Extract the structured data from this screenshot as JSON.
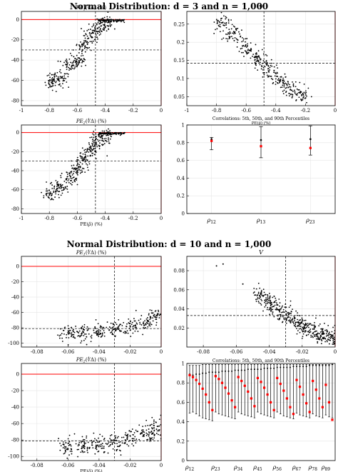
{
  "section_titles": [
    "Normal Distribution: d = 3 and n = 1,000",
    "Normal Distribution: d = 10 and n = 1,000"
  ],
  "colors": {
    "points": "#000000",
    "reference_line": "#ff0000",
    "grid": "#e6e6e6",
    "median_marker": "#ff0000",
    "dashed": "#000000"
  },
  "chart_data": [
    {
      "type": "scatter",
      "title": "PE1(∜Δ) (%)",
      "xlabel": "",
      "ylabel": "",
      "xlim": [
        -1,
        0
      ],
      "ylim": [
        -85,
        8
      ],
      "xticks": [
        -1,
        -0.8,
        -0.6,
        -0.4,
        -0.2,
        0
      ],
      "yticks": [
        0,
        -20,
        -40,
        -60,
        -80
      ],
      "xtick_labels": [
        "-1",
        "-0.8",
        "-0.6",
        "-0.4",
        "-0.2",
        "0"
      ],
      "ytick_labels": [
        "0",
        "-20",
        "-40",
        "-60",
        "-80"
      ],
      "grid": true,
      "hline_solid": 0,
      "vline_dashed": -0.47,
      "hline_dashed": -30,
      "cloud": [
        {
          "x": -0.78,
          "y": -62
        },
        {
          "x": -0.72,
          "y": -58
        },
        {
          "x": -0.65,
          "y": -46
        },
        {
          "x": -0.6,
          "y": -38
        },
        {
          "x": -0.55,
          "y": -26
        },
        {
          "x": -0.5,
          "y": -16
        },
        {
          "x": -0.45,
          "y": -9
        },
        {
          "x": -0.4,
          "y": -3
        }
      ],
      "clusters": [
        {
          "x0": -0.45,
          "x1": -0.26,
          "y": 0
        }
      ]
    },
    {
      "type": "scatter",
      "title": "V",
      "xlabel": "",
      "ylabel": "",
      "xlim": [
        -1,
        0
      ],
      "ylim": [
        0.025,
        0.285
      ],
      "xticks": [
        -1,
        -0.8,
        -0.6,
        -0.4,
        -0.2,
        0
      ],
      "yticks": [
        0.05,
        0.1,
        0.15,
        0.2,
        0.25
      ],
      "xtick_labels": [
        "-1",
        "-0.8",
        "-0.6",
        "-0.4",
        "-0.2",
        "0"
      ],
      "ytick_labels": [
        "0.05",
        "0.1",
        "0.15",
        "0.2",
        "0.25"
      ],
      "grid": true,
      "vline_dashed": -0.48,
      "hline_dashed": 0.142,
      "cloud": [
        {
          "x": -0.76,
          "y": 0.25
        },
        {
          "x": -0.68,
          "y": 0.215
        },
        {
          "x": -0.6,
          "y": 0.185
        },
        {
          "x": -0.52,
          "y": 0.155
        },
        {
          "x": -0.45,
          "y": 0.125
        },
        {
          "x": -0.38,
          "y": 0.095
        },
        {
          "x": -0.3,
          "y": 0.07
        },
        {
          "x": -0.23,
          "y": 0.055
        }
      ]
    },
    {
      "type": "scatter",
      "title": "PE2(∜Δ) (%)",
      "xlabel": "PE(ρ̂) (%)",
      "ylabel": "",
      "xlim": [
        -1,
        0
      ],
      "ylim": [
        -85,
        8
      ],
      "xticks": [
        -1,
        -0.8,
        -0.6,
        -0.4,
        -0.2,
        0
      ],
      "yticks": [
        0,
        -20,
        -40,
        -60,
        -80
      ],
      "xtick_labels": [
        "-1",
        "-0.8",
        "-0.6",
        "-0.4",
        "-0.2",
        "0"
      ],
      "ytick_labels": [
        "0",
        "-20",
        "-40",
        "-60",
        "-80"
      ],
      "grid": true,
      "hline_solid": 0,
      "vline_dashed": -0.47,
      "hline_dashed": -30,
      "cloud": [
        {
          "x": -0.78,
          "y": -64
        },
        {
          "x": -0.72,
          "y": -58
        },
        {
          "x": -0.65,
          "y": -47
        },
        {
          "x": -0.6,
          "y": -38
        },
        {
          "x": -0.55,
          "y": -27
        },
        {
          "x": -0.5,
          "y": -17
        },
        {
          "x": -0.45,
          "y": -9
        },
        {
          "x": -0.4,
          "y": -3
        }
      ],
      "clusters": [
        {
          "x0": -0.45,
          "x1": -0.26,
          "y": 0
        }
      ]
    },
    {
      "type": "errorbar",
      "title": "Correlations: 5th, 50th, and 90th Percentiles",
      "xlabel": "PE(ρ̂) (%)",
      "ylabel": "",
      "ylim": [
        0,
        1
      ],
      "yticks": [
        0,
        0.2,
        0.4,
        0.6,
        0.8,
        1
      ],
      "ytick_labels": [
        "0",
        "0.2",
        "0.4",
        "0.6",
        "0.8",
        "1"
      ],
      "grid": true,
      "categories": [
        "ρ12",
        "ρ13",
        "ρ23"
      ],
      "category_labels": [
        {
          "base": "ρ",
          "sub": "12"
        },
        {
          "base": "ρ",
          "sub": "13"
        },
        {
          "base": "ρ",
          "sub": "23"
        }
      ],
      "p5": [
        0.72,
        0.63,
        0.66
      ],
      "p50": [
        0.84,
        0.83,
        0.84
      ],
      "p90": [
        0.86,
        0.98,
        0.99
      ],
      "marker": [
        0.82,
        0.76,
        0.74
      ]
    },
    {
      "type": "scatter",
      "title": "PE1(∜Δ) (%)",
      "xlabel": "",
      "ylabel": "",
      "xlim": [
        -0.09,
        0
      ],
      "ylim": [
        -105,
        13
      ],
      "xticks": [
        -0.08,
        -0.06,
        -0.04,
        -0.02,
        0
      ],
      "yticks": [
        0,
        -20,
        -40,
        -60,
        -80,
        -100
      ],
      "xtick_labels": [
        "-0.08",
        "-0.06",
        "-0.04",
        "-0.02",
        "0"
      ],
      "ytick_labels": [
        "0",
        "-20",
        "-40",
        "-60",
        "-80",
        "-100"
      ],
      "grid": true,
      "hline_solid": 0,
      "vline_dashed": -0.03,
      "hline_dashed": -81,
      "cloud": [
        {
          "x": -0.06,
          "y": -88
        },
        {
          "x": -0.05,
          "y": -87
        },
        {
          "x": -0.04,
          "y": -85
        },
        {
          "x": -0.03,
          "y": -82
        },
        {
          "x": -0.02,
          "y": -78
        },
        {
          "x": -0.01,
          "y": -72
        },
        {
          "x": -0.003,
          "y": -65
        }
      ]
    },
    {
      "type": "scatter",
      "title": "V",
      "xlabel": "",
      "ylabel": "",
      "xlim": [
        -0.09,
        0
      ],
      "ylim": [
        0,
        0.095
      ],
      "xticks": [
        -0.08,
        -0.06,
        -0.04,
        -0.02,
        0
      ],
      "yticks": [
        0.02,
        0.04,
        0.06,
        0.08
      ],
      "xtick_labels": [
        "-0.08",
        "-0.06",
        "-0.04",
        "-0.02",
        "0"
      ],
      "ytick_labels": [
        "0.02",
        "0.04",
        "0.06",
        "0.08"
      ],
      "grid": true,
      "vline_dashed": -0.03,
      "hline_dashed": 0.033,
      "cloud": [
        {
          "x": -0.045,
          "y": 0.055
        },
        {
          "x": -0.04,
          "y": 0.047
        },
        {
          "x": -0.035,
          "y": 0.04
        },
        {
          "x": -0.03,
          "y": 0.033
        },
        {
          "x": -0.025,
          "y": 0.027
        },
        {
          "x": -0.02,
          "y": 0.022
        },
        {
          "x": -0.015,
          "y": 0.018
        },
        {
          "x": -0.01,
          "y": 0.014
        },
        {
          "x": -0.005,
          "y": 0.011
        },
        {
          "x": -0.001,
          "y": 0.009
        }
      ],
      "outliers": [
        {
          "x": -0.072,
          "y": 0.085
        },
        {
          "x": -0.068,
          "y": 0.087
        },
        {
          "x": -0.056,
          "y": 0.066
        }
      ]
    },
    {
      "type": "scatter",
      "title": "PE2(∜Δ) (%)",
      "xlabel": "PE(ρ̂) (%)",
      "ylabel": "",
      "xlim": [
        -0.09,
        0
      ],
      "ylim": [
        -105,
        13
      ],
      "xticks": [
        -0.08,
        -0.06,
        -0.04,
        -0.02,
        0
      ],
      "yticks": [
        0,
        -20,
        -40,
        -60,
        -80,
        -100
      ],
      "xtick_labels": [
        "-0.08",
        "-0.06",
        "-0.04",
        "-0.02",
        "0"
      ],
      "ytick_labels": [
        "0",
        "-20",
        "-40",
        "-60",
        "-80",
        "-100"
      ],
      "grid": true,
      "hline_solid": 0,
      "vline_dashed": -0.03,
      "hline_dashed": -81,
      "cloud": [
        {
          "x": -0.06,
          "y": -88
        },
        {
          "x": -0.05,
          "y": -87
        },
        {
          "x": -0.04,
          "y": -85
        },
        {
          "x": -0.03,
          "y": -82
        },
        {
          "x": -0.02,
          "y": -78
        },
        {
          "x": -0.01,
          "y": -72
        },
        {
          "x": -0.003,
          "y": -65
        }
      ]
    },
    {
      "type": "errorbar",
      "title": "Correlations: 5th, 50th, and 90th Percentiles",
      "xlabel": "",
      "ylabel": "",
      "ylim": [
        0,
        1
      ],
      "yticks": [
        0,
        0.2,
        0.4,
        0.6,
        0.8,
        1
      ],
      "ytick_labels": [
        "0",
        "0.2",
        "0.4",
        "0.6",
        "0.8",
        "1"
      ],
      "grid": true,
      "n_categories": 45,
      "category_labels": [
        {
          "base": "ρ",
          "sub": "12"
        },
        {
          "base": "ρ",
          "sub": "23"
        },
        {
          "base": "ρ",
          "sub": "34"
        },
        {
          "base": "ρ",
          "sub": "45"
        },
        {
          "base": "ρ",
          "sub": "56"
        },
        {
          "base": "ρ",
          "sub": "67"
        },
        {
          "base": "ρ",
          "sub": "78"
        },
        {
          "base": "ρ",
          "sub": "89"
        }
      ],
      "category_label_index": [
        0,
        8,
        15,
        21,
        27,
        33,
        38,
        42
      ],
      "p5": [
        0.49,
        0.5,
        0.48,
        0.46,
        0.44,
        0.43,
        0.42,
        0.41,
        0.5,
        0.48,
        0.47,
        0.46,
        0.45,
        0.44,
        0.43,
        0.5,
        0.48,
        0.47,
        0.46,
        0.45,
        0.44,
        0.5,
        0.48,
        0.47,
        0.46,
        0.45,
        0.44,
        0.5,
        0.48,
        0.46,
        0.45,
        0.44,
        0.43,
        0.49,
        0.47,
        0.46,
        0.45,
        0.44,
        0.48,
        0.46,
        0.45,
        0.44,
        0.47,
        0.45,
        0.44
      ],
      "p50": [
        0.89,
        0.88,
        0.89,
        0.89,
        0.9,
        0.9,
        0.91,
        0.91,
        0.91,
        0.91,
        0.92,
        0.92,
        0.92,
        0.92,
        0.93,
        0.93,
        0.93,
        0.93,
        0.94,
        0.94,
        0.94,
        0.94,
        0.94,
        0.95,
        0.95,
        0.95,
        0.95,
        0.96,
        0.96,
        0.96,
        0.96,
        0.96,
        0.97,
        0.97,
        0.97,
        0.97,
        0.97,
        0.98,
        0.98,
        0.98,
        0.98,
        0.98,
        0.98,
        0.98,
        0.99
      ],
      "p90": [
        0.98,
        0.98,
        0.98,
        0.98,
        0.99,
        0.99,
        0.99,
        0.99,
        0.99,
        0.99,
        0.99,
        0.99,
        0.99,
        0.99,
        0.99,
        0.99,
        0.99,
        0.99,
        0.99,
        0.99,
        0.99,
        0.99,
        0.99,
        0.99,
        0.99,
        0.99,
        0.99,
        0.99,
        0.99,
        0.99,
        0.99,
        0.99,
        0.99,
        0.99,
        0.99,
        0.99,
        0.99,
        0.99,
        0.99,
        0.99,
        0.99,
        0.99,
        0.99,
        0.99,
        0.99
      ],
      "marker": [
        0.88,
        0.86,
        0.83,
        0.79,
        0.74,
        0.68,
        0.6,
        0.52,
        0.87,
        0.84,
        0.8,
        0.75,
        0.69,
        0.62,
        0.55,
        0.86,
        0.82,
        0.77,
        0.71,
        0.64,
        0.56,
        0.85,
        0.81,
        0.75,
        0.68,
        0.6,
        0.52,
        0.85,
        0.79,
        0.72,
        0.64,
        0.55,
        0.48,
        0.83,
        0.76,
        0.68,
        0.59,
        0.5,
        0.82,
        0.73,
        0.64,
        0.55,
        0.78,
        0.6,
        0.42
      ]
    }
  ]
}
